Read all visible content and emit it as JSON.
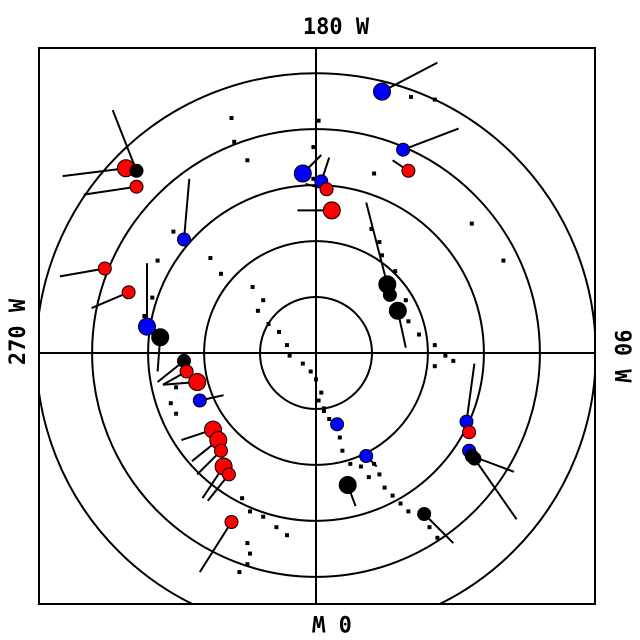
{
  "chart_data": {
    "type": "scatter",
    "projection": "polar stereographic",
    "labels": {
      "top": "180 W",
      "bottom": "0 W",
      "left": "270 W",
      "right": "90 W"
    },
    "rings": 5,
    "colors": {
      "red": "#ff0000",
      "blue": "#0000ff",
      "black": "#000000"
    },
    "markers": [
      {
        "color": "red",
        "size": "large",
        "x": -0.72,
        "y": 0.7,
        "vx": -0.24,
        "vy": -0.03
      },
      {
        "color": "black",
        "size": "small",
        "x": -0.68,
        "y": 0.69,
        "vx": -0.09,
        "vy": 0.23
      },
      {
        "color": "red",
        "size": "small",
        "x": -0.68,
        "y": 0.63,
        "vx": -0.2,
        "vy": -0.03
      },
      {
        "color": "blue",
        "size": "small",
        "x": -0.5,
        "y": 0.43,
        "vx": 0.02,
        "vy": 0.23
      },
      {
        "color": "red",
        "size": "small",
        "x": -0.8,
        "y": 0.32,
        "vx": -0.17,
        "vy": -0.03
      },
      {
        "color": "red",
        "size": "small",
        "x": -0.71,
        "y": 0.23,
        "vx": -0.14,
        "vy": -0.06
      },
      {
        "color": "blue",
        "size": "large",
        "x": -0.64,
        "y": 0.1,
        "vx": 0.0,
        "vy": 0.24
      },
      {
        "color": "black",
        "size": "large",
        "x": -0.59,
        "y": 0.06,
        "vx": -0.01,
        "vy": -0.13
      },
      {
        "color": "black",
        "size": "small",
        "x": -0.5,
        "y": -0.03,
        "vx": -0.1,
        "vy": -0.08
      },
      {
        "color": "red",
        "size": "small",
        "x": -0.49,
        "y": -0.07,
        "vx": -0.09,
        "vy": -0.05
      },
      {
        "color": "red",
        "size": "large",
        "x": -0.45,
        "y": -0.11,
        "vx": -0.13,
        "vy": -0.01
      },
      {
        "color": "blue",
        "size": "small",
        "x": -0.44,
        "y": -0.18,
        "vx": 0.09,
        "vy": 0.02
      },
      {
        "color": "red",
        "size": "large",
        "x": -0.39,
        "y": -0.29,
        "vx": -0.12,
        "vy": -0.04
      },
      {
        "color": "red",
        "size": "large",
        "x": -0.37,
        "y": -0.33,
        "vx": -0.1,
        "vy": -0.08
      },
      {
        "color": "red",
        "size": "small",
        "x": -0.36,
        "y": -0.37,
        "vx": -0.09,
        "vy": -0.09
      },
      {
        "color": "red",
        "size": "large",
        "x": -0.35,
        "y": -0.43,
        "vx": -0.08,
        "vy": -0.12
      },
      {
        "color": "red",
        "size": "small",
        "x": -0.33,
        "y": -0.46,
        "vx": -0.08,
        "vy": -0.1
      },
      {
        "color": "red",
        "size": "small",
        "x": -0.32,
        "y": -0.64,
        "vx": -0.12,
        "vy": -0.19
      },
      {
        "color": "blue",
        "size": "large",
        "x": -0.05,
        "y": 0.68,
        "vx": 0.07,
        "vy": 0.07
      },
      {
        "color": "blue",
        "size": "small",
        "x": 0.02,
        "y": 0.65,
        "vx": 0.03,
        "vy": 0.09
      },
      {
        "color": "red",
        "size": "small",
        "x": 0.04,
        "y": 0.62,
        "vx": -0.08,
        "vy": 0.02
      },
      {
        "color": "red",
        "size": "large",
        "x": 0.06,
        "y": 0.54,
        "vx": -0.13,
        "vy": 0.0
      },
      {
        "color": "blue",
        "size": "large",
        "x": 0.25,
        "y": 0.99,
        "vx": 0.21,
        "vy": 0.11
      },
      {
        "color": "blue",
        "size": "small",
        "x": 0.33,
        "y": 0.77,
        "vx": 0.21,
        "vy": 0.08
      },
      {
        "color": "red",
        "size": "small",
        "x": 0.35,
        "y": 0.69,
        "vx": -0.06,
        "vy": 0.04
      },
      {
        "color": "black",
        "size": "large",
        "x": 0.27,
        "y": 0.26,
        "vx": -0.08,
        "vy": 0.31
      },
      {
        "color": "black",
        "size": "small",
        "x": 0.28,
        "y": 0.22,
        "vx": -0.03,
        "vy": 0.05
      },
      {
        "color": "black",
        "size": "large",
        "x": 0.31,
        "y": 0.16,
        "vx": 0.03,
        "vy": -0.14
      },
      {
        "color": "blue",
        "size": "small",
        "x": 0.08,
        "y": -0.27,
        "vx": 0.0,
        "vy": 0.0
      },
      {
        "color": "blue",
        "size": "small",
        "x": 0.19,
        "y": -0.39,
        "vx": 0.04,
        "vy": -0.04
      },
      {
        "color": "black",
        "size": "large",
        "x": 0.12,
        "y": -0.5,
        "vx": 0.03,
        "vy": -0.08
      },
      {
        "color": "black",
        "size": "small",
        "x": 0.41,
        "y": -0.61,
        "vx": 0.11,
        "vy": -0.11
      },
      {
        "color": "blue",
        "size": "small",
        "x": 0.57,
        "y": -0.26,
        "vx": 0.03,
        "vy": 0.22
      },
      {
        "color": "red",
        "size": "small",
        "x": 0.58,
        "y": -0.3,
        "vx": 0.0,
        "vy": 0.0
      },
      {
        "color": "blue",
        "size": "small",
        "x": 0.58,
        "y": -0.37,
        "vx": 0.0,
        "vy": 0.0
      },
      {
        "color": "black",
        "size": "small",
        "x": 0.59,
        "y": -0.39,
        "vx": 0.16,
        "vy": -0.06
      },
      {
        "color": "black",
        "size": "small",
        "x": 0.6,
        "y": -0.4,
        "vx": 0.16,
        "vy": -0.23
      }
    ],
    "tracks": [
      {
        "x": -0.32,
        "y": 0.89
      },
      {
        "x": -0.31,
        "y": 0.8
      },
      {
        "x": -0.26,
        "y": 0.73
      },
      {
        "x": -0.54,
        "y": 0.46
      },
      {
        "x": -0.4,
        "y": 0.36
      },
      {
        "x": -0.36,
        "y": 0.3
      },
      {
        "x": -0.24,
        "y": 0.25
      },
      {
        "x": -0.2,
        "y": 0.2
      },
      {
        "x": -0.22,
        "y": 0.16
      },
      {
        "x": -0.18,
        "y": 0.11
      },
      {
        "x": -0.14,
        "y": 0.08
      },
      {
        "x": -0.11,
        "y": 0.03
      },
      {
        "x": -0.1,
        "y": -0.01
      },
      {
        "x": -0.05,
        "y": -0.04
      },
      {
        "x": -0.02,
        "y": -0.07
      },
      {
        "x": 0.0,
        "y": -0.1
      },
      {
        "x": 0.02,
        "y": -0.15
      },
      {
        "x": 0.03,
        "y": -0.22
      },
      {
        "x": -0.6,
        "y": 0.35
      },
      {
        "x": -0.62,
        "y": 0.21
      },
      {
        "x": -0.65,
        "y": 0.14
      },
      {
        "x": -0.53,
        "y": -0.13
      },
      {
        "x": -0.55,
        "y": -0.19
      },
      {
        "x": -0.53,
        "y": -0.23
      },
      {
        "x": -0.28,
        "y": -0.55
      },
      {
        "x": -0.25,
        "y": -0.6
      },
      {
        "x": -0.2,
        "y": -0.62
      },
      {
        "x": -0.15,
        "y": -0.66
      },
      {
        "x": -0.11,
        "y": -0.69
      },
      {
        "x": -0.26,
        "y": -0.72
      },
      {
        "x": -0.25,
        "y": -0.76
      },
      {
        "x": -0.26,
        "y": -0.8
      },
      {
        "x": -0.29,
        "y": -0.83
      },
      {
        "x": -0.01,
        "y": 0.78
      },
      {
        "x": 0.01,
        "y": 0.88
      },
      {
        "x": -0.01,
        "y": 0.66
      },
      {
        "x": 0.22,
        "y": 0.68
      },
      {
        "x": 0.21,
        "y": 0.47
      },
      {
        "x": 0.24,
        "y": 0.42
      },
      {
        "x": 0.25,
        "y": 0.37
      },
      {
        "x": 0.3,
        "y": 0.31
      },
      {
        "x": 0.34,
        "y": 0.2
      },
      {
        "x": 0.35,
        "y": 0.12
      },
      {
        "x": 0.39,
        "y": 0.07
      },
      {
        "x": 0.45,
        "y": 0.03
      },
      {
        "x": 0.49,
        "y": -0.01
      },
      {
        "x": 0.52,
        "y": -0.03
      },
      {
        "x": 0.45,
        "y": -0.05
      },
      {
        "x": 0.36,
        "y": 0.97
      },
      {
        "x": 0.45,
        "y": 0.96
      },
      {
        "x": 0.59,
        "y": 0.49
      },
      {
        "x": 0.71,
        "y": 0.35
      },
      {
        "x": 0.01,
        "y": -0.18
      },
      {
        "x": 0.03,
        "y": -0.21
      },
      {
        "x": 0.05,
        "y": -0.25
      },
      {
        "x": 0.09,
        "y": -0.32
      },
      {
        "x": 0.1,
        "y": -0.37
      },
      {
        "x": 0.13,
        "y": -0.42
      },
      {
        "x": 0.22,
        "y": -0.42
      },
      {
        "x": 0.24,
        "y": -0.46
      },
      {
        "x": 0.26,
        "y": -0.51
      },
      {
        "x": 0.29,
        "y": -0.54
      },
      {
        "x": 0.32,
        "y": -0.57
      },
      {
        "x": 0.35,
        "y": -0.6
      },
      {
        "x": 0.43,
        "y": -0.66
      },
      {
        "x": 0.46,
        "y": -0.7
      },
      {
        "x": 0.2,
        "y": -0.47
      },
      {
        "x": 0.17,
        "y": -0.43
      }
    ]
  }
}
